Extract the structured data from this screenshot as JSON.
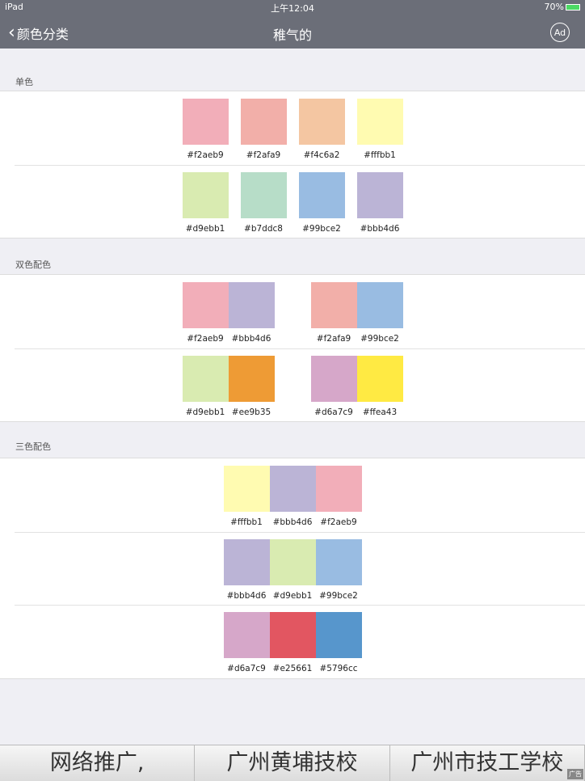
{
  "status": {
    "device": "iPad",
    "time": "上午12:04",
    "battery": "70%"
  },
  "nav": {
    "back_label": "颜色分类",
    "title": "稚气的",
    "ad_label": "Ad"
  },
  "sections": [
    {
      "title": "单色",
      "rows": [
        [
          [
            "#f2aeb9"
          ],
          [
            "#f2afa9"
          ],
          [
            "#f4c6a2"
          ],
          [
            "#fffbb1"
          ]
        ],
        [
          [
            "#d9ebb1"
          ],
          [
            "#b7ddc8"
          ],
          [
            "#99bce2"
          ],
          [
            "#bbb4d6"
          ]
        ]
      ]
    },
    {
      "title": "双色配色",
      "rows": [
        [
          [
            "#f2aeb9",
            "#bbb4d6"
          ],
          [
            "#f2afa9",
            "#99bce2"
          ]
        ],
        [
          [
            "#d9ebb1",
            "#ee9b35"
          ],
          [
            "#d6a7c9",
            "#ffea43"
          ]
        ]
      ]
    },
    {
      "title": "三色配色",
      "rows": [
        [
          [
            "#fffbb1",
            "#bbb4d6",
            "#f2aeb9"
          ]
        ],
        [
          [
            "#bbb4d6",
            "#d9ebb1",
            "#99bce2"
          ]
        ],
        [
          [
            "#d6a7c9",
            "#e25661",
            "#5796cc"
          ]
        ]
      ]
    }
  ],
  "ads": {
    "items": [
      "网络推广,",
      "广州黄埔技校",
      "广州市技工学校"
    ],
    "tag": "广告"
  }
}
